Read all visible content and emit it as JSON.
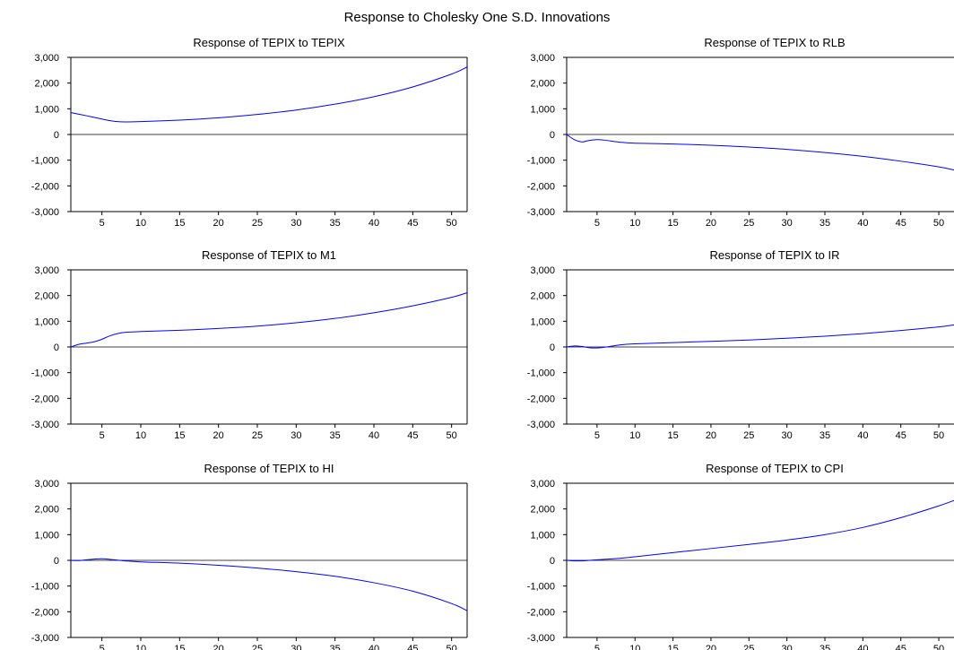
{
  "title": "Response to Cholesky One S.D. Innovations",
  "colors": {
    "series": "#0000ff",
    "axis": "#000000",
    "zero_line": "#000000",
    "background": "#ffffff"
  },
  "chart_data": [
    {
      "type": "line",
      "title": "Response of TEPIX to TEPIX",
      "xlim": [
        1,
        52
      ],
      "ylim": [
        -3000,
        3000
      ],
      "yticks": [
        -3000,
        -2000,
        -1000,
        0,
        1000,
        2000,
        3000
      ],
      "ytick_labels": [
        "-3,000",
        "-2,000",
        "-1,000",
        "0",
        "1,000",
        "2,000",
        "3,000"
      ],
      "xticks": [
        5,
        10,
        15,
        20,
        25,
        30,
        35,
        40,
        45,
        50
      ],
      "xtick_labels": [
        "5",
        "10",
        "15",
        "20",
        "25",
        "30",
        "35",
        "40",
        "45",
        "50"
      ],
      "grid": false,
      "zero_line": true,
      "series": [
        {
          "x": [
            1,
            3,
            5,
            6,
            7,
            8,
            10,
            15,
            20,
            25,
            30,
            35,
            40,
            45,
            50,
            52
          ],
          "values": [
            850,
            730,
            600,
            540,
            500,
            490,
            500,
            560,
            650,
            780,
            950,
            1180,
            1470,
            1850,
            2350,
            2630
          ]
        }
      ]
    },
    {
      "type": "line",
      "title": "Response of TEPIX to RLB",
      "xlim": [
        1,
        52
      ],
      "ylim": [
        -3000,
        3000
      ],
      "yticks": [
        -3000,
        -2000,
        -1000,
        0,
        1000,
        2000,
        3000
      ],
      "ytick_labels": [
        "-3,000",
        "-2,000",
        "-1,000",
        "0",
        "1,000",
        "2,000",
        "3,000"
      ],
      "xticks": [
        5,
        10,
        15,
        20,
        25,
        30,
        35,
        40,
        45,
        50
      ],
      "xtick_labels": [
        "5",
        "10",
        "15",
        "20",
        "25",
        "30",
        "35",
        "40",
        "45",
        "50"
      ],
      "grid": false,
      "zero_line": true,
      "series": [
        {
          "x": [
            1,
            2,
            3,
            4,
            5,
            6,
            8,
            10,
            15,
            20,
            25,
            30,
            35,
            40,
            45,
            50,
            52
          ],
          "values": [
            0,
            -200,
            -290,
            -230,
            -200,
            -220,
            -300,
            -340,
            -370,
            -420,
            -490,
            -580,
            -700,
            -850,
            -1040,
            -1260,
            -1380
          ]
        }
      ]
    },
    {
      "type": "line",
      "title": "Response of TEPIX to M1",
      "xlim": [
        1,
        52
      ],
      "ylim": [
        -3000,
        3000
      ],
      "yticks": [
        -3000,
        -2000,
        -1000,
        0,
        1000,
        2000,
        3000
      ],
      "ytick_labels": [
        "-3,000",
        "-2,000",
        "-1,000",
        "0",
        "1,000",
        "2,000",
        "3,000"
      ],
      "xticks": [
        5,
        10,
        15,
        20,
        25,
        30,
        35,
        40,
        45,
        50
      ],
      "xtick_labels": [
        "5",
        "10",
        "15",
        "20",
        "25",
        "30",
        "35",
        "40",
        "45",
        "50"
      ],
      "grid": false,
      "zero_line": true,
      "series": [
        {
          "x": [
            1,
            2,
            3,
            4,
            5,
            6,
            7,
            8,
            10,
            15,
            20,
            25,
            30,
            35,
            40,
            45,
            50,
            52
          ],
          "values": [
            0,
            100,
            150,
            200,
            300,
            430,
            520,
            570,
            600,
            650,
            720,
            810,
            940,
            1110,
            1330,
            1600,
            1930,
            2110
          ]
        }
      ]
    },
    {
      "type": "line",
      "title": "Response of TEPIX to IR",
      "xlim": [
        1,
        52
      ],
      "ylim": [
        -3000,
        3000
      ],
      "yticks": [
        -3000,
        -2000,
        -1000,
        0,
        1000,
        2000,
        3000
      ],
      "ytick_labels": [
        "-3,000",
        "-2,000",
        "-1,000",
        "0",
        "1,000",
        "2,000",
        "3,000"
      ],
      "xticks": [
        5,
        10,
        15,
        20,
        25,
        30,
        35,
        40,
        45,
        50
      ],
      "xtick_labels": [
        "5",
        "10",
        "15",
        "20",
        "25",
        "30",
        "35",
        "40",
        "45",
        "50"
      ],
      "grid": false,
      "zero_line": true,
      "series": [
        {
          "x": [
            1,
            2,
            3,
            4,
            5,
            6,
            8,
            10,
            15,
            20,
            25,
            30,
            35,
            40,
            45,
            50,
            52
          ],
          "values": [
            0,
            40,
            20,
            -30,
            -40,
            -10,
            80,
            120,
            170,
            220,
            270,
            340,
            420,
            520,
            640,
            780,
            860
          ]
        }
      ]
    },
    {
      "type": "line",
      "title": "Response of TEPIX to HI",
      "xlim": [
        1,
        52
      ],
      "ylim": [
        -3000,
        3000
      ],
      "yticks": [
        -3000,
        -2000,
        -1000,
        0,
        1000,
        2000,
        3000
      ],
      "ytick_labels": [
        "-3,000",
        "-2,000",
        "-1,000",
        "0",
        "1,000",
        "2,000",
        "3,000"
      ],
      "xticks": [
        5,
        10,
        15,
        20,
        25,
        30,
        35,
        40,
        45,
        50
      ],
      "xtick_labels": [
        "5",
        "10",
        "15",
        "20",
        "25",
        "30",
        "35",
        "40",
        "45",
        "50"
      ],
      "grid": false,
      "zero_line": true,
      "series": [
        {
          "x": [
            1,
            2,
            3,
            4,
            5,
            6,
            7,
            8,
            10,
            15,
            20,
            25,
            30,
            35,
            40,
            45,
            50,
            52
          ],
          "values": [
            0,
            -10,
            20,
            50,
            60,
            40,
            10,
            -20,
            -60,
            -110,
            -190,
            -300,
            -440,
            -620,
            -870,
            -1200,
            -1680,
            -1960
          ]
        }
      ]
    },
    {
      "type": "line",
      "title": "Response of TEPIX to CPI",
      "xlim": [
        1,
        52
      ],
      "ylim": [
        -3000,
        3000
      ],
      "yticks": [
        -3000,
        -2000,
        -1000,
        0,
        1000,
        2000,
        3000
      ],
      "ytick_labels": [
        "-3,000",
        "-2,000",
        "-1,000",
        "0",
        "1,000",
        "2,000",
        "3,000"
      ],
      "xticks": [
        5,
        10,
        15,
        20,
        25,
        30,
        35,
        40,
        45,
        50
      ],
      "xtick_labels": [
        "5",
        "10",
        "15",
        "20",
        "25",
        "30",
        "35",
        "40",
        "45",
        "50"
      ],
      "grid": false,
      "zero_line": true,
      "series": [
        {
          "x": [
            1,
            2,
            3,
            4,
            5,
            6,
            8,
            10,
            15,
            20,
            25,
            30,
            35,
            40,
            45,
            50,
            52
          ],
          "values": [
            0,
            -20,
            -20,
            0,
            20,
            40,
            80,
            140,
            300,
            460,
            620,
            790,
            1000,
            1280,
            1660,
            2120,
            2330
          ]
        }
      ]
    }
  ]
}
